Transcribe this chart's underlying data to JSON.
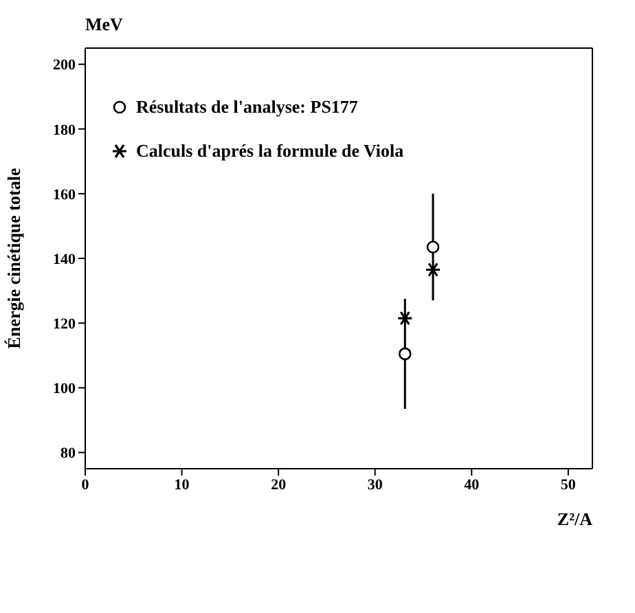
{
  "chart_data": {
    "type": "scatter",
    "ylabel": "Énergie cinétique totale",
    "xlabel": "Z²/A",
    "annotations": [
      "MeV"
    ],
    "xlim": [
      0,
      52.5
    ],
    "xticks": [
      0,
      10,
      20,
      30,
      40,
      50
    ],
    "ylim": [
      75,
      205
    ],
    "yticks": [
      80,
      100,
      120,
      140,
      160,
      180,
      200
    ],
    "grid": false,
    "legend": "top left",
    "x": [
      33.1,
      36.0
    ],
    "series": [
      {
        "name": "Résultats de l'analyse: PS177",
        "color": "#000000",
        "marker": "circle",
        "values": [
          110.5,
          143.5
        ],
        "errors": [
          17,
          16.5
        ]
      },
      {
        "name": "Calculs d'aprés la formule de Viola",
        "color": "#000000",
        "marker": "cross",
        "values": [
          121.5,
          136.5
        ]
      }
    ]
  }
}
